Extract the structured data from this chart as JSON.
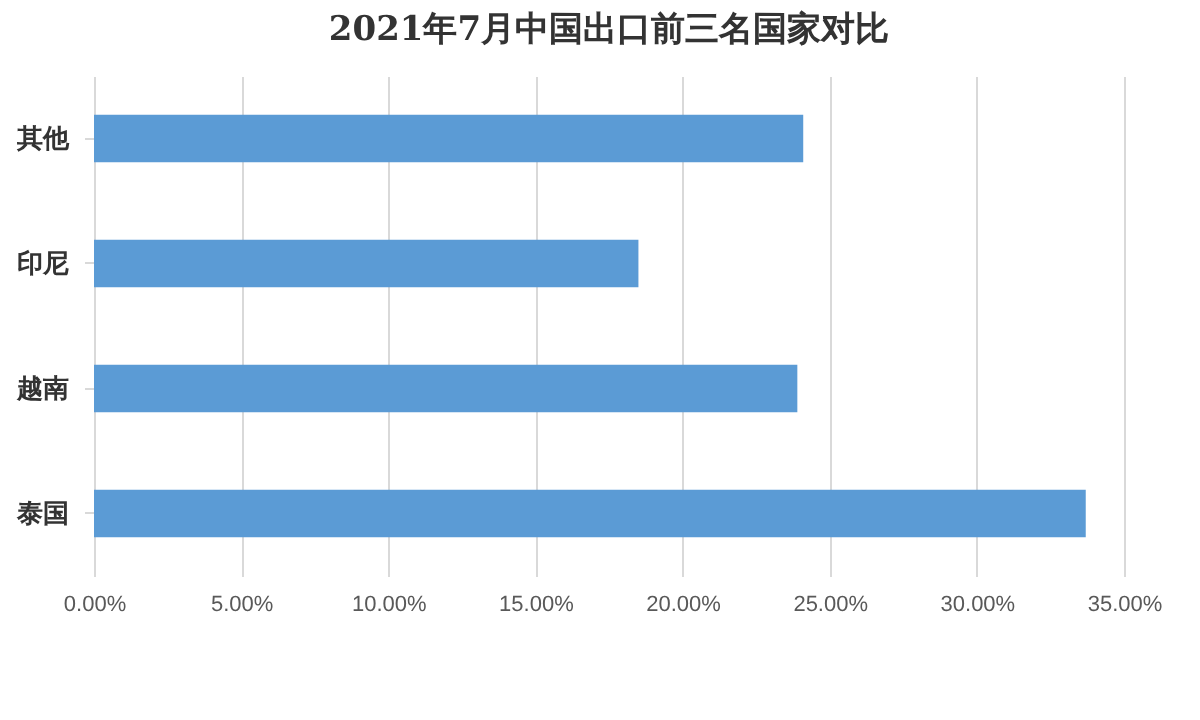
{
  "chart_data": {
    "type": "bar",
    "orientation": "horizontal",
    "title": "2021年7月中国出口前三名国家对比",
    "categories": [
      "其他",
      "印尼",
      "越南",
      "泰国"
    ],
    "values": [
      24.1,
      18.5,
      23.9,
      33.7
    ],
    "color": "#5b9bd5",
    "xlim": [
      0,
      35
    ],
    "xticks": [
      {
        "value": 0,
        "label": "0.00%"
      },
      {
        "value": 5,
        "label": "5.00%"
      },
      {
        "value": 10,
        "label": "10.00%"
      },
      {
        "value": 15,
        "label": "15.00%"
      },
      {
        "value": 20,
        "label": "20.00%"
      },
      {
        "value": 25,
        "label": "25.00%"
      },
      {
        "value": 30,
        "label": "30.00%"
      },
      {
        "value": 35,
        "label": "35.00%"
      }
    ],
    "grid": "x"
  }
}
